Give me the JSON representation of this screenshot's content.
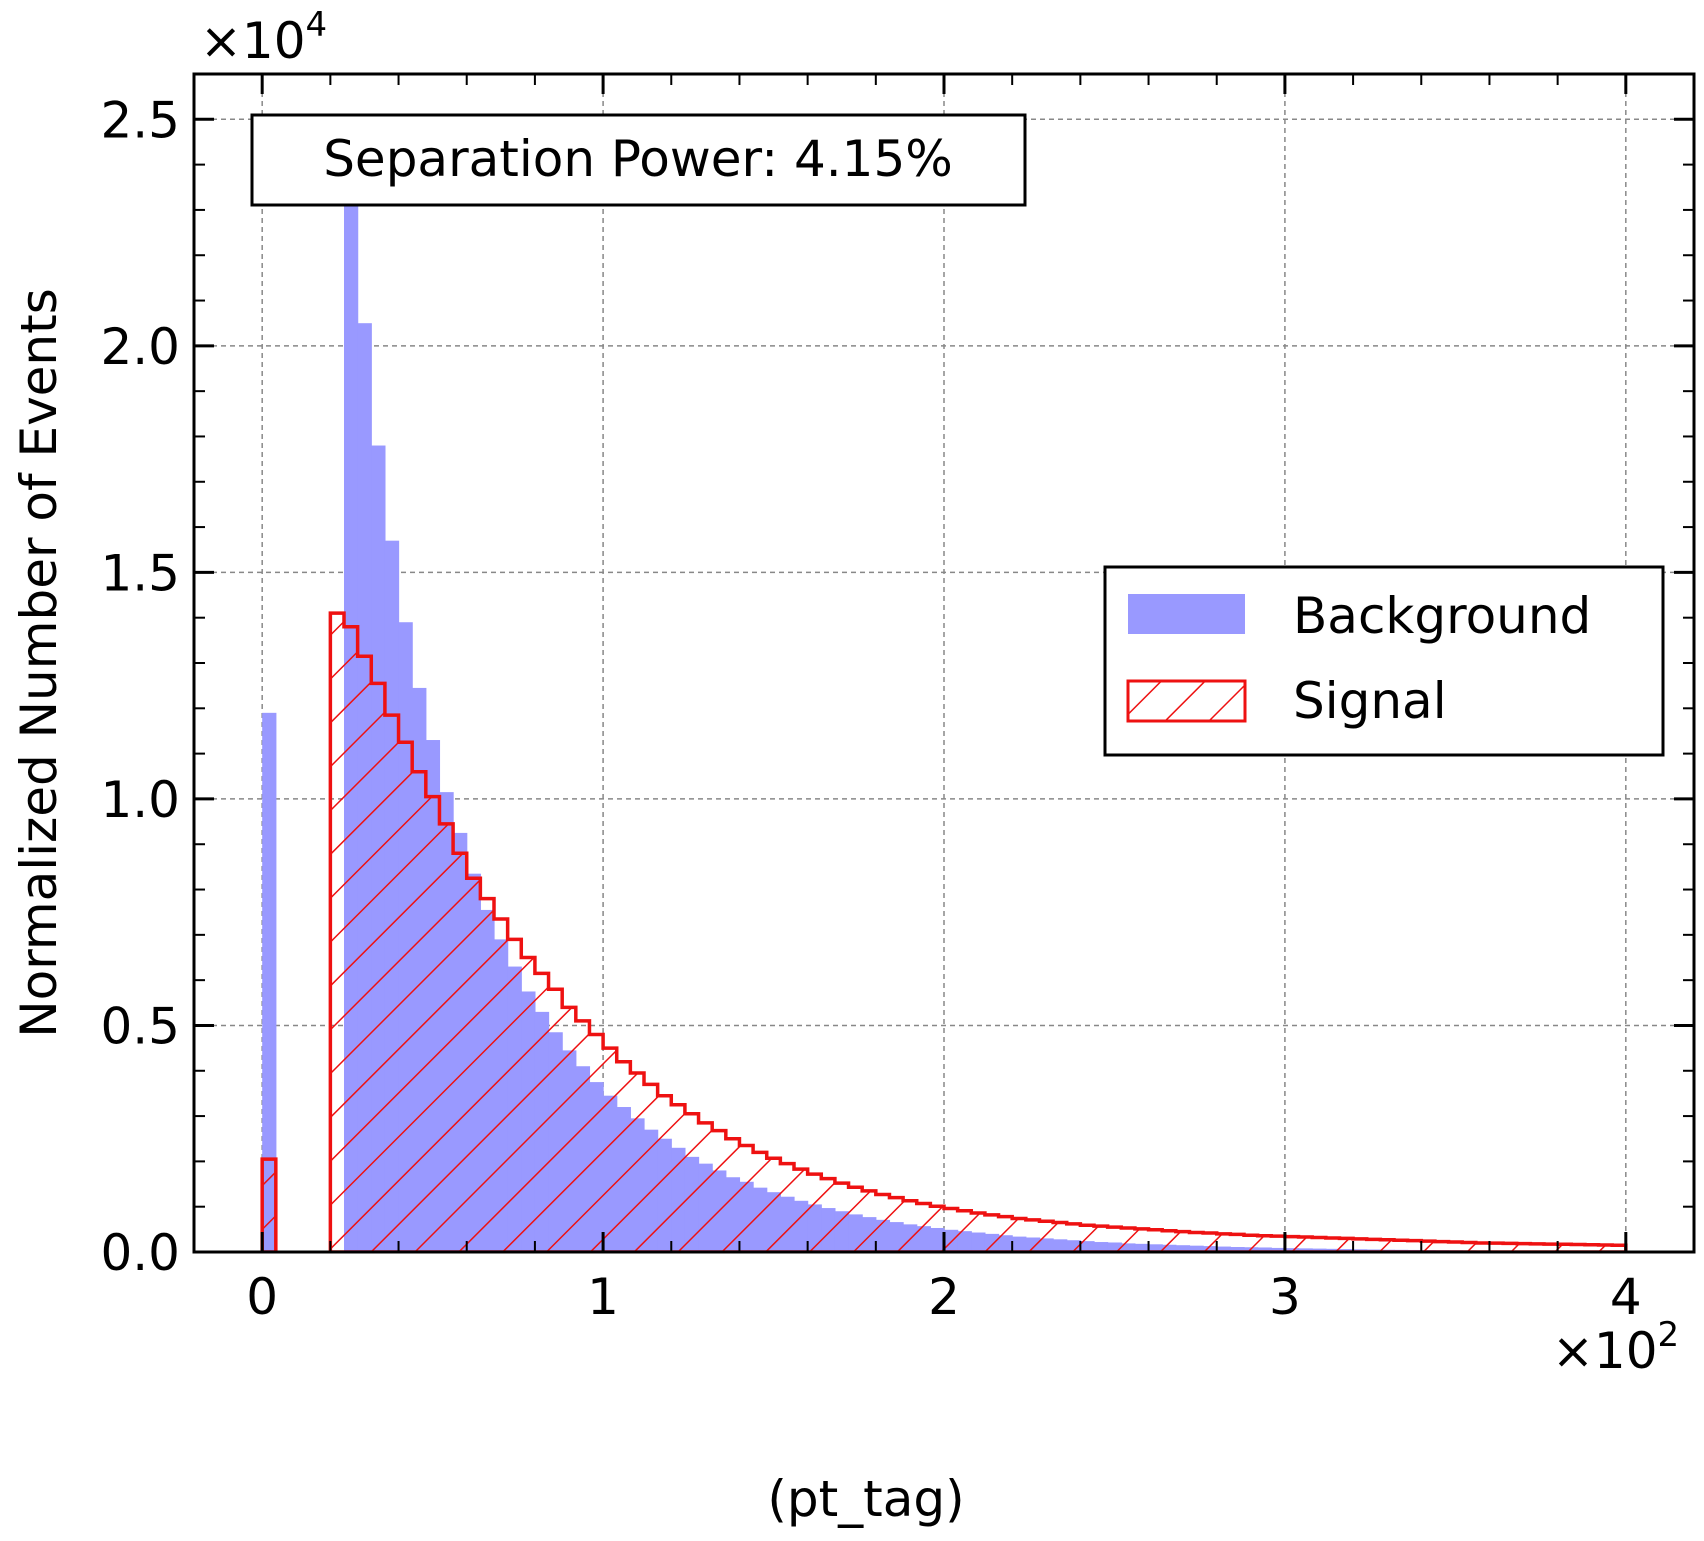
{
  "chart_data": {
    "type": "histogram",
    "title": "",
    "xlabel": "(pt_tag)",
    "ylabel": "Normalized Number of Events",
    "x_multiplier": "×10^2",
    "y_multiplier": "×10^4",
    "xlim": [
      -0.2,
      4.2
    ],
    "ylim": [
      0,
      2.6
    ],
    "x_ticks": [
      0,
      1,
      2,
      3,
      4
    ],
    "x_tick_labels": [
      "0",
      "1",
      "2",
      "3",
      "4"
    ],
    "y_ticks": [
      0.0,
      0.5,
      1.0,
      1.5,
      2.0,
      2.5
    ],
    "y_tick_labels": [
      "0.0",
      "0.5",
      "1.0",
      "1.5",
      "2.0",
      "2.5"
    ],
    "grid": true,
    "legend_position": "center-right",
    "annotation": "Separation Power: 4.15%",
    "bin_start": 0,
    "bin_width": 0.04,
    "series": [
      {
        "name": "Background",
        "style": "filled",
        "color": "#9999ff",
        "values": [
          1.19,
          0,
          0,
          0,
          0,
          0,
          2.31,
          2.05,
          1.78,
          1.57,
          1.39,
          1.245,
          1.13,
          1.015,
          0.925,
          0.835,
          0.755,
          0.69,
          0.63,
          0.575,
          0.53,
          0.485,
          0.445,
          0.41,
          0.375,
          0.345,
          0.32,
          0.295,
          0.27,
          0.25,
          0.23,
          0.21,
          0.195,
          0.18,
          0.165,
          0.155,
          0.142,
          0.132,
          0.122,
          0.113,
          0.105,
          0.097,
          0.09,
          0.083,
          0.077,
          0.071,
          0.066,
          0.061,
          0.057,
          0.053,
          0.049,
          0.046,
          0.043,
          0.04,
          0.037,
          0.034,
          0.032,
          0.03,
          0.028,
          0.026,
          0.024,
          0.022,
          0.021,
          0.019,
          0.018,
          0.017,
          0.016,
          0.015,
          0.014,
          0.013,
          0.012,
          0.011,
          0.0105,
          0.01,
          0.009,
          0.0085,
          0.008,
          0.0075,
          0.007,
          0.0065,
          0.006,
          0.0055,
          0.005,
          0.0048,
          0.0045,
          0.0042,
          0.004,
          0.0038,
          0.0035,
          0.0033,
          0.0031,
          0.003,
          0.0028,
          0.0026,
          0.0025,
          0.0024,
          0.0022,
          0.0021,
          0.002,
          0.0019
        ]
      },
      {
        "name": "Signal",
        "style": "hatched-outline",
        "color": "#ee1111",
        "values": [
          0.205,
          0,
          0,
          0,
          0,
          1.41,
          1.38,
          1.315,
          1.255,
          1.185,
          1.125,
          1.06,
          1.005,
          0.945,
          0.88,
          0.825,
          0.78,
          0.735,
          0.69,
          0.65,
          0.615,
          0.58,
          0.54,
          0.51,
          0.48,
          0.45,
          0.42,
          0.395,
          0.37,
          0.345,
          0.325,
          0.305,
          0.285,
          0.268,
          0.25,
          0.235,
          0.22,
          0.207,
          0.195,
          0.183,
          0.172,
          0.162,
          0.152,
          0.143,
          0.135,
          0.127,
          0.12,
          0.113,
          0.107,
          0.101,
          0.096,
          0.091,
          0.086,
          0.082,
          0.078,
          0.074,
          0.071,
          0.068,
          0.065,
          0.062,
          0.059,
          0.057,
          0.055,
          0.053,
          0.051,
          0.049,
          0.047,
          0.045,
          0.043,
          0.042,
          0.04,
          0.039,
          0.037,
          0.036,
          0.035,
          0.034,
          0.033,
          0.032,
          0.031,
          0.03,
          0.029,
          0.028,
          0.027,
          0.026,
          0.025,
          0.024,
          0.023,
          0.022,
          0.021,
          0.02,
          0.0195,
          0.019,
          0.0185,
          0.018,
          0.0175,
          0.017,
          0.0165,
          0.016,
          0.0155,
          0.015
        ]
      }
    ]
  }
}
